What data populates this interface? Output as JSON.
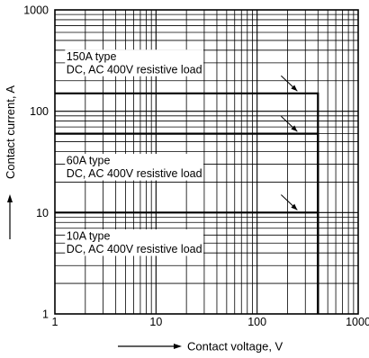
{
  "chart_data": {
    "type": "line",
    "x_scale": "log",
    "y_scale": "log",
    "xlim": [
      1,
      1000
    ],
    "ylim": [
      1,
      1000
    ],
    "grid": true,
    "xlabel": "Contact voltage, V",
    "ylabel": "Contact current, A",
    "x_ticks": [
      {
        "value": 1,
        "label": "1"
      },
      {
        "value": 10,
        "label": "10"
      },
      {
        "value": 100,
        "label": "100"
      },
      {
        "value": 1000,
        "label": "1000"
      }
    ],
    "y_ticks": [
      {
        "value": 1,
        "label": "1"
      },
      {
        "value": 10,
        "label": "10"
      },
      {
        "value": 100,
        "label": "100"
      },
      {
        "value": 1000,
        "label": "1000"
      }
    ],
    "series": [
      {
        "id": "150a",
        "points": [
          {
            "x": 1,
            "y": 150
          },
          {
            "x": 400,
            "y": 150
          },
          {
            "x": 400,
            "y": 1
          }
        ],
        "annotation": [
          "150A type",
          "DC, AC 400V resistive load"
        ],
        "annotation_at": {
          "x": 1.3,
          "y": 320
        },
        "arrow_to": {
          "x": 250,
          "y": 158
        }
      },
      {
        "id": "60a",
        "points": [
          {
            "x": 1,
            "y": 60
          },
          {
            "x": 400,
            "y": 60
          },
          {
            "x": 400,
            "y": 1
          }
        ],
        "annotation": [
          "60A type",
          "DC, AC 400V resistive load"
        ],
        "annotation_at": {
          "x": 1.3,
          "y": 30
        },
        "arrow_to": {
          "x": 250,
          "y": 63
        }
      },
      {
        "id": "10a",
        "points": [
          {
            "x": 1,
            "y": 10
          },
          {
            "x": 400,
            "y": 10
          },
          {
            "x": 400,
            "y": 1
          }
        ],
        "annotation": [
          "10A type",
          "DC, AC 400V resistive load"
        ],
        "annotation_at": {
          "x": 1.3,
          "y": 5.4
        },
        "arrow_to": {
          "x": 250,
          "y": 10.6
        }
      }
    ]
  }
}
